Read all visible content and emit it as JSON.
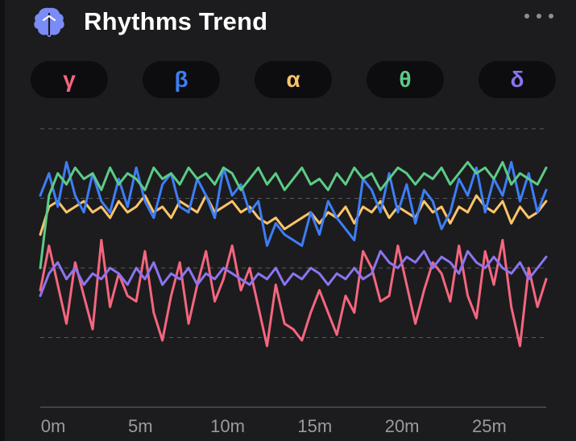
{
  "header": {
    "title": "Rhythms Trend",
    "icon": "brain-icon",
    "menu_icon": "more-dots-icon"
  },
  "colors": {
    "background": "#1c1c1e",
    "pill_bg": "#0d0d0f",
    "grid": "#5a5a60",
    "axis_text": "#9a9aa0",
    "brain_icon": "#7b8cf7"
  },
  "pills": [
    {
      "label": "γ",
      "color": "#f4667f"
    },
    {
      "label": "β",
      "color": "#3d7ef5"
    },
    {
      "label": "α",
      "color": "#fcc468"
    },
    {
      "label": "θ",
      "color": "#5ccb86"
    },
    {
      "label": "δ",
      "color": "#8b74f0"
    }
  ],
  "chart_data": {
    "type": "line",
    "title": "Rhythms Trend",
    "xlabel": "",
    "ylabel": "",
    "x_ticks": [
      "0m",
      "5m",
      "10m",
      "15m",
      "20m",
      "25m"
    ],
    "x_tick_values": [
      0,
      5,
      10,
      15,
      20,
      25
    ],
    "xlim": [
      0,
      29
    ],
    "ylim": [
      0,
      100
    ],
    "grid": "horizontal dashed",
    "legend": "top pills",
    "series": [
      {
        "name": "γ",
        "color": "#f4667f",
        "x": [
          0,
          0.5,
          1,
          1.5,
          2,
          2.5,
          3,
          3.5,
          4,
          4.5,
          5,
          5.5,
          6,
          6.5,
          7,
          7.5,
          8,
          8.5,
          9,
          9.5,
          10,
          10.5,
          11,
          11.5,
          12,
          12.5,
          13,
          13.5,
          14,
          14.5,
          15,
          15.5,
          16,
          16.5,
          17,
          17.5,
          18,
          18.5,
          19,
          19.5,
          20,
          20.5,
          21,
          21.5,
          22,
          22.5,
          23,
          23.5,
          24,
          24.5,
          25,
          25.5,
          26,
          26.5,
          27,
          27.5,
          28,
          28.5,
          29
        ],
        "values": [
          42,
          58,
          44,
          30,
          52,
          40,
          28,
          60,
          36,
          48,
          40,
          38,
          56,
          34,
          24,
          40,
          52,
          30,
          44,
          56,
          38,
          46,
          58,
          42,
          50,
          36,
          22,
          44,
          30,
          28,
          24,
          34,
          42,
          34,
          26,
          40,
          34,
          56,
          50,
          38,
          40,
          58,
          44,
          30,
          42,
          52,
          48,
          38,
          58,
          40,
          32,
          56,
          44,
          60,
          36,
          22,
          50,
          36,
          46
        ],
        "role": "lowest, most volatile band"
      },
      {
        "name": "β",
        "color": "#3d7ef5",
        "x": [
          0,
          0.5,
          1,
          1.5,
          2,
          2.5,
          3,
          3.5,
          4,
          4.5,
          5,
          5.5,
          6,
          6.5,
          7,
          7.5,
          8,
          8.5,
          9,
          9.5,
          10,
          10.5,
          11,
          11.5,
          12,
          12.5,
          13,
          13.5,
          14,
          14.5,
          15,
          15.5,
          16,
          16.5,
          17,
          17.5,
          18,
          18.5,
          19,
          19.5,
          20,
          20.5,
          21,
          21.5,
          22,
          22.5,
          23,
          23.5,
          24,
          24.5,
          25,
          25.5,
          26,
          26.5,
          27,
          27.5,
          28,
          28.5,
          29
        ],
        "values": [
          76,
          84,
          72,
          88,
          76,
          70,
          84,
          74,
          70,
          82,
          72,
          86,
          74,
          68,
          80,
          84,
          72,
          70,
          82,
          76,
          68,
          86,
          76,
          80,
          70,
          74,
          58,
          66,
          62,
          60,
          58,
          70,
          62,
          74,
          68,
          64,
          60,
          82,
          78,
          70,
          84,
          70,
          80,
          66,
          78,
          74,
          64,
          70,
          82,
          76,
          86,
          70,
          82,
          76,
          88,
          74,
          84,
          70,
          78
        ],
        "role": "upper band, high variance"
      },
      {
        "name": "α",
        "color": "#fcc468",
        "x": [
          0,
          0.5,
          1,
          1.5,
          2,
          2.5,
          3,
          3.5,
          4,
          4.5,
          5,
          5.5,
          6,
          6.5,
          7,
          7.5,
          8,
          8.5,
          9,
          9.5,
          10,
          10.5,
          11,
          11.5,
          12,
          12.5,
          13,
          13.5,
          14,
          14.5,
          15,
          15.5,
          16,
          16.5,
          17,
          17.5,
          18,
          18.5,
          19,
          19.5,
          20,
          20.5,
          21,
          21.5,
          22,
          22.5,
          23,
          23.5,
          24,
          24.5,
          25,
          25.5,
          26,
          26.5,
          27,
          27.5,
          28,
          28.5,
          29
        ],
        "values": [
          62,
          72,
          74,
          70,
          72,
          74,
          70,
          72,
          68,
          74,
          70,
          72,
          76,
          70,
          72,
          68,
          74,
          72,
          70,
          76,
          70,
          72,
          74,
          70,
          72,
          68,
          66,
          68,
          64,
          66,
          68,
          70,
          66,
          70,
          68,
          72,
          66,
          72,
          70,
          74,
          68,
          72,
          70,
          68,
          74,
          70,
          72,
          66,
          72,
          70,
          76,
          72,
          70,
          74,
          66,
          72,
          68,
          70,
          74
        ],
        "role": "mid-high band"
      },
      {
        "name": "θ",
        "color": "#5ccb86",
        "x": [
          0,
          0.5,
          1,
          1.5,
          2,
          2.5,
          3,
          3.5,
          4,
          4.5,
          5,
          5.5,
          6,
          6.5,
          7,
          7.5,
          8,
          8.5,
          9,
          9.5,
          10,
          10.5,
          11,
          11.5,
          12,
          12.5,
          13,
          13.5,
          14,
          14.5,
          15,
          15.5,
          16,
          16.5,
          17,
          17.5,
          18,
          18.5,
          19,
          19.5,
          20,
          20.5,
          21,
          21.5,
          22,
          22.5,
          23,
          23.5,
          24,
          24.5,
          25,
          25.5,
          26,
          26.5,
          27,
          27.5,
          28,
          28.5,
          29
        ],
        "values": [
          50,
          76,
          84,
          80,
          86,
          82,
          84,
          78,
          86,
          80,
          84,
          82,
          78,
          86,
          82,
          84,
          80,
          86,
          82,
          84,
          80,
          86,
          84,
          78,
          82,
          86,
          80,
          84,
          78,
          82,
          86,
          80,
          82,
          78,
          84,
          80,
          86,
          82,
          84,
          78,
          82,
          86,
          84,
          80,
          84,
          82,
          86,
          80,
          84,
          88,
          84,
          86,
          82,
          88,
          80,
          84,
          82,
          80,
          86
        ],
        "role": "top band, steady"
      },
      {
        "name": "δ",
        "color": "#8b74f0",
        "x": [
          0,
          0.5,
          1,
          1.5,
          2,
          2.5,
          3,
          3.5,
          4,
          4.5,
          5,
          5.5,
          6,
          6.5,
          7,
          7.5,
          8,
          8.5,
          9,
          9.5,
          10,
          10.5,
          11,
          11.5,
          12,
          12.5,
          13,
          13.5,
          14,
          14.5,
          15,
          15.5,
          16,
          16.5,
          17,
          17.5,
          18,
          18.5,
          19,
          19.5,
          20,
          20.5,
          21,
          21.5,
          22,
          22.5,
          23,
          23.5,
          24,
          24.5,
          25,
          25.5,
          26,
          26.5,
          27,
          27.5,
          28,
          28.5,
          29
        ],
        "values": [
          40,
          48,
          52,
          46,
          50,
          44,
          48,
          46,
          50,
          48,
          44,
          50,
          46,
          52,
          44,
          48,
          46,
          50,
          44,
          48,
          46,
          50,
          48,
          46,
          44,
          48,
          46,
          50,
          44,
          48,
          46,
          50,
          48,
          44,
          48,
          46,
          50,
          46,
          48,
          56,
          52,
          50,
          54,
          52,
          56,
          50,
          54,
          52,
          48,
          56,
          52,
          50,
          54,
          50,
          48,
          52,
          46,
          50,
          54
        ],
        "role": "middle band, low variance"
      }
    ]
  }
}
